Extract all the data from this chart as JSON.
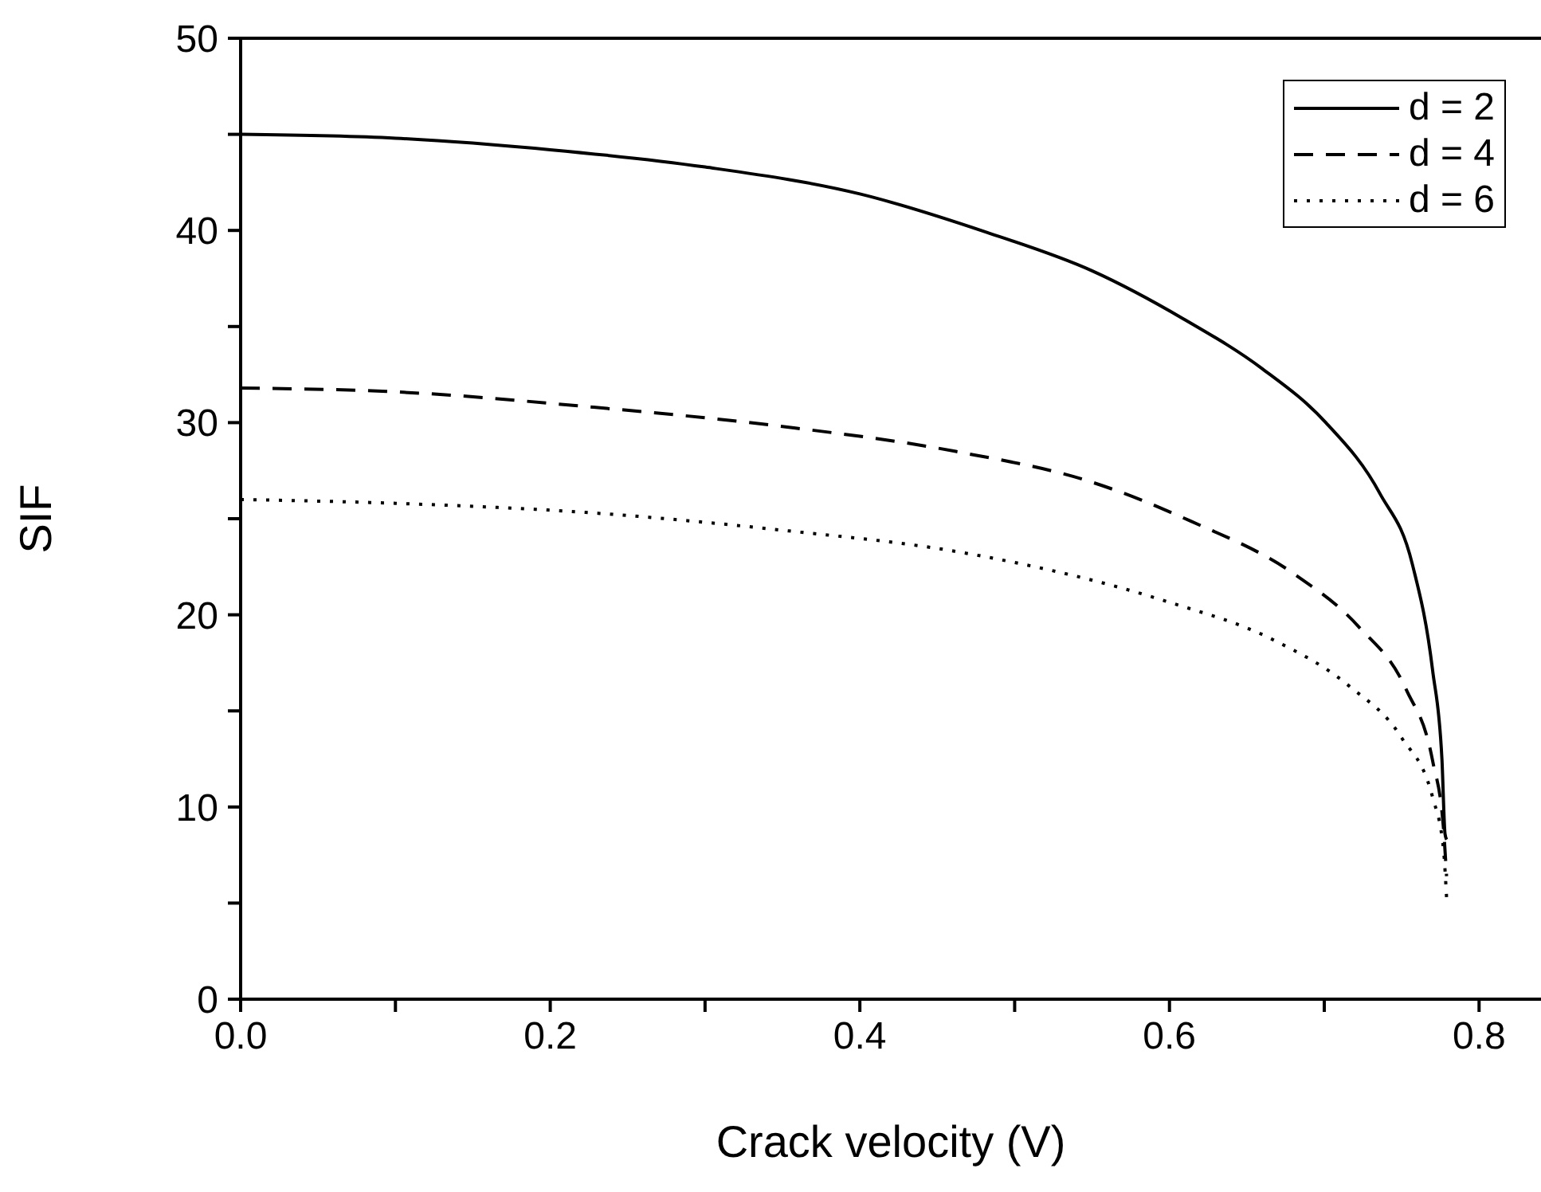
{
  "chart_data": {
    "type": "line",
    "xlabel": "Crack velocity (V)",
    "ylabel": "SIF",
    "xlim": [
      0,
      0.84
    ],
    "ylim": [
      0,
      50
    ],
    "xticks": [
      {
        "value": 0,
        "label": "0.0"
      },
      {
        "value": 0.1,
        "label": null
      },
      {
        "value": 0.2,
        "label": "0.2"
      },
      {
        "value": 0.3,
        "label": null
      },
      {
        "value": 0.4,
        "label": "0.4"
      },
      {
        "value": 0.5,
        "label": null
      },
      {
        "value": 0.6,
        "label": "0.6"
      },
      {
        "value": 0.7,
        "label": null
      },
      {
        "value": 0.8,
        "label": "0.8"
      }
    ],
    "yticks": [
      0,
      {
        "value": 5,
        "label": null
      },
      10,
      {
        "value": 15,
        "label": null
      },
      20,
      {
        "value": 25,
        "label": null
      },
      30,
      {
        "value": 35,
        "label": null
      },
      40,
      {
        "value": 45,
        "label": null
      },
      50
    ],
    "grid": false,
    "legend": "top right",
    "marker": "none",
    "series": [
      {
        "name": "d = 2",
        "color": "#000000",
        "line_style": "solid",
        "x": [
          0,
          0.1,
          0.2,
          0.3,
          0.4,
          0.482,
          0.55,
          0.609,
          0.66,
          0.701,
          0.736,
          0.757,
          0.77,
          0.776,
          0.778,
          0.779
        ],
        "values": [
          45,
          44.8,
          44.2,
          43.3,
          41.9,
          39.9,
          37.9,
          35.4,
          32.8,
          30.0,
          26.3,
          22.6,
          17.1,
          12.5,
          8.6,
          8.3
        ]
      },
      {
        "name": "d = 4",
        "color": "#000000",
        "line_style": "dashed",
        "x": [
          0,
          0.1,
          0.228,
          0.35,
          0.462,
          0.55,
          0.613,
          0.681,
          0.722,
          0.753,
          0.77,
          0.777,
          0.779
        ],
        "values": [
          31.8,
          31.6,
          30.8,
          29.8,
          28.5,
          26.9,
          24.9,
          22.1,
          19.4,
          16.1,
          12.4,
          8.9,
          6.4
        ]
      },
      {
        "name": "d = 6",
        "color": "#000000",
        "line_style": "dotted",
        "x": [
          0,
          0.1,
          0.228,
          0.35,
          0.469,
          0.598,
          0.667,
          0.716,
          0.75,
          0.77,
          0.777,
          0.779
        ],
        "values": [
          26,
          25.8,
          25.3,
          24.4,
          23.2,
          20.7,
          18.7,
          16.3,
          13.6,
          10.5,
          7.8,
          5.3
        ]
      }
    ]
  }
}
